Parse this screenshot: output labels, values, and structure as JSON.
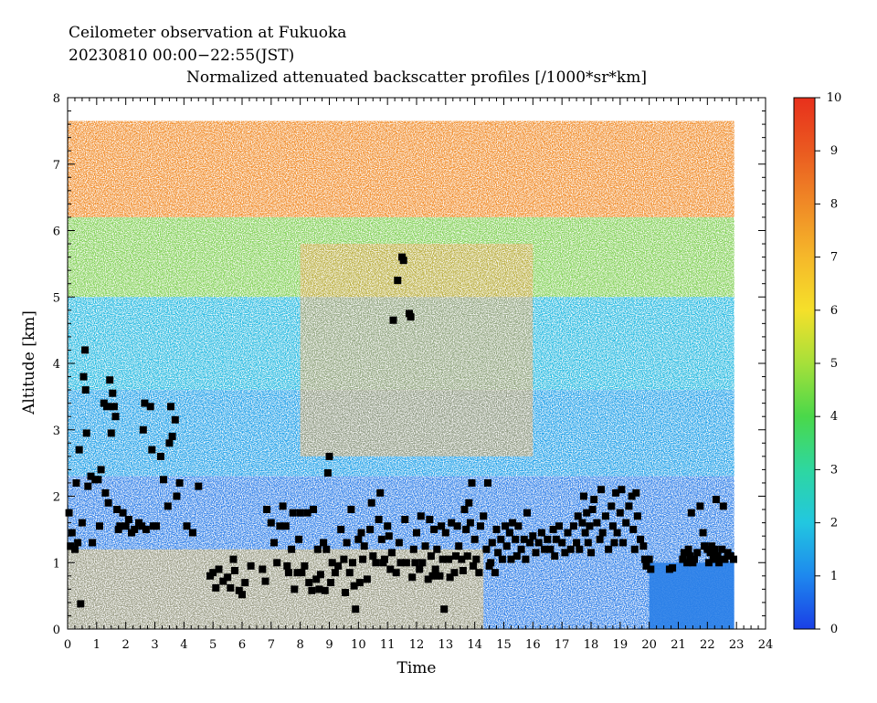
{
  "header": {
    "line1": "Ceilometer observation at Fukuoka",
    "line2": "20230810  00:00−22:55(JST)",
    "title": "Normalized attenuated backscatter profiles [/1000*sr*km]"
  },
  "chart_data": {
    "type": "heatmap",
    "title": "Normalized attenuated backscatter profiles [/1000*sr*km]",
    "xlabel": "Time",
    "ylabel": "Altitude [km]",
    "xlim": [
      0,
      24
    ],
    "ylim": [
      0,
      8
    ],
    "x_ticks": [
      "0",
      "1",
      "2",
      "3",
      "4",
      "5",
      "6",
      "7",
      "8",
      "9",
      "10",
      "11",
      "12",
      "13",
      "14",
      "15",
      "16",
      "17",
      "18",
      "19",
      "20",
      "21",
      "22",
      "23",
      "24"
    ],
    "y_ticks": [
      "0",
      "1",
      "2",
      "3",
      "4",
      "5",
      "6",
      "7",
      "8"
    ],
    "data_extent": {
      "time": [
        0,
        22.92
      ],
      "altitude_max": 7.65
    },
    "colorbar": {
      "range": [
        0,
        10
      ],
      "ticks": [
        "0",
        "1",
        "2",
        "3",
        "4",
        "5",
        "6",
        "7",
        "8",
        "9",
        "10"
      ],
      "colors": [
        "#1a3fe6",
        "#1e88ee",
        "#22c7e0",
        "#2ed7a0",
        "#4ad84a",
        "#a6e03a",
        "#f5e02a",
        "#f5b82a",
        "#f08a26",
        "#ea5a20",
        "#e8301c"
      ]
    },
    "cloud_base_markers": {
      "marker": "black square",
      "points": [
        [
          0.05,
          1.75
        ],
        [
          0.1,
          1.25
        ],
        [
          0.15,
          1.45
        ],
        [
          0.25,
          1.2
        ],
        [
          0.3,
          2.2
        ],
        [
          0.35,
          1.3
        ],
        [
          0.4,
          2.7
        ],
        [
          0.45,
          0.38
        ],
        [
          0.5,
          1.6
        ],
        [
          0.55,
          3.8
        ],
        [
          0.6,
          4.2
        ],
        [
          0.62,
          3.6
        ],
        [
          0.65,
          2.95
        ],
        [
          0.7,
          2.15
        ],
        [
          0.8,
          2.3
        ],
        [
          0.85,
          1.3
        ],
        [
          0.95,
          2.25
        ],
        [
          1.05,
          2.25
        ],
        [
          1.1,
          1.55
        ],
        [
          1.15,
          2.4
        ],
        [
          1.25,
          3.4
        ],
        [
          1.3,
          2.05
        ],
        [
          1.35,
          3.35
        ],
        [
          1.4,
          1.9
        ],
        [
          1.45,
          3.75
        ],
        [
          1.5,
          2.95
        ],
        [
          1.55,
          3.55
        ],
        [
          1.6,
          3.35
        ],
        [
          1.65,
          3.2
        ],
        [
          1.7,
          1.8
        ],
        [
          1.75,
          1.5
        ],
        [
          1.8,
          1.55
        ],
        [
          1.9,
          1.75
        ],
        [
          2.0,
          1.55
        ],
        [
          2.1,
          1.65
        ],
        [
          2.2,
          1.45
        ],
        [
          2.3,
          1.5
        ],
        [
          2.45,
          1.6
        ],
        [
          2.55,
          1.55
        ],
        [
          2.6,
          3.0
        ],
        [
          2.65,
          3.4
        ],
        [
          2.7,
          1.5
        ],
        [
          2.85,
          3.35
        ],
        [
          2.9,
          2.7
        ],
        [
          2.95,
          1.55
        ],
        [
          3.05,
          1.55
        ],
        [
          3.2,
          2.6
        ],
        [
          3.3,
          2.25
        ],
        [
          3.45,
          1.85
        ],
        [
          3.5,
          2.8
        ],
        [
          3.55,
          3.35
        ],
        [
          3.6,
          2.9
        ],
        [
          3.7,
          3.15
        ],
        [
          3.75,
          2.0
        ],
        [
          3.85,
          2.2
        ],
        [
          4.1,
          1.55
        ],
        [
          4.3,
          1.45
        ],
        [
          4.5,
          2.15
        ],
        [
          4.9,
          0.8
        ],
        [
          5.0,
          0.85
        ],
        [
          5.1,
          0.62
        ],
        [
          5.2,
          0.9
        ],
        [
          5.35,
          0.72
        ],
        [
          5.5,
          0.78
        ],
        [
          5.6,
          0.62
        ],
        [
          5.7,
          1.05
        ],
        [
          5.75,
          0.88
        ],
        [
          5.9,
          0.58
        ],
        [
          6.0,
          0.52
        ],
        [
          6.1,
          0.7
        ],
        [
          6.3,
          0.95
        ],
        [
          6.7,
          0.9
        ],
        [
          6.8,
          0.72
        ],
        [
          6.85,
          1.8
        ],
        [
          7.0,
          1.6
        ],
        [
          7.1,
          1.3
        ],
        [
          7.2,
          1.0
        ],
        [
          7.3,
          1.55
        ],
        [
          7.4,
          1.85
        ],
        [
          7.5,
          1.55
        ],
        [
          7.55,
          0.95
        ],
        [
          7.6,
          0.85
        ],
        [
          7.7,
          1.2
        ],
        [
          7.75,
          1.75
        ],
        [
          7.8,
          0.6
        ],
        [
          7.9,
          0.85
        ],
        [
          7.95,
          1.35
        ],
        [
          8.0,
          1.75
        ],
        [
          8.05,
          0.85
        ],
        [
          8.15,
          0.95
        ],
        [
          8.25,
          1.75
        ],
        [
          8.3,
          0.7
        ],
        [
          8.4,
          0.58
        ],
        [
          8.45,
          1.8
        ],
        [
          8.55,
          0.75
        ],
        [
          8.6,
          1.2
        ],
        [
          8.65,
          0.6
        ],
        [
          8.7,
          0.82
        ],
        [
          8.8,
          1.3
        ],
        [
          8.85,
          0.58
        ],
        [
          8.9,
          1.2
        ],
        [
          8.95,
          2.35
        ],
        [
          9.0,
          2.6
        ],
        [
          9.05,
          0.7
        ],
        [
          9.1,
          1.0
        ],
        [
          9.2,
          0.85
        ],
        [
          9.3,
          0.95
        ],
        [
          9.4,
          1.5
        ],
        [
          9.5,
          1.05
        ],
        [
          9.55,
          0.55
        ],
        [
          9.6,
          1.3
        ],
        [
          9.7,
          0.85
        ],
        [
          9.75,
          1.8
        ],
        [
          9.8,
          1.0
        ],
        [
          9.85,
          0.65
        ],
        [
          9.9,
          0.3
        ],
        [
          10.0,
          1.35
        ],
        [
          10.05,
          0.7
        ],
        [
          10.1,
          1.45
        ],
        [
          10.15,
          1.05
        ],
        [
          10.2,
          1.25
        ],
        [
          10.3,
          0.75
        ],
        [
          10.4,
          1.5
        ],
        [
          10.45,
          1.9
        ],
        [
          10.5,
          1.1
        ],
        [
          10.6,
          1.0
        ],
        [
          10.7,
          1.65
        ],
        [
          10.75,
          2.05
        ],
        [
          10.8,
          1.35
        ],
        [
          10.85,
          1.0
        ],
        [
          10.9,
          1.05
        ],
        [
          11.0,
          1.55
        ],
        [
          11.05,
          1.4
        ],
        [
          11.1,
          0.9
        ],
        [
          11.15,
          1.15
        ],
        [
          11.2,
          4.65
        ],
        [
          11.3,
          0.85
        ],
        [
          11.35,
          5.25
        ],
        [
          11.4,
          1.3
        ],
        [
          11.45,
          1.0
        ],
        [
          11.5,
          5.6
        ],
        [
          11.55,
          5.55
        ],
        [
          11.6,
          1.65
        ],
        [
          11.65,
          1.0
        ],
        [
          11.75,
          4.75
        ],
        [
          11.8,
          4.7
        ],
        [
          11.85,
          0.78
        ],
        [
          11.9,
          1.2
        ],
        [
          11.95,
          1.0
        ],
        [
          12.0,
          1.45
        ],
        [
          12.1,
          0.9
        ],
        [
          12.15,
          1.7
        ],
        [
          12.2,
          1.0
        ],
        [
          12.3,
          1.25
        ],
        [
          12.4,
          0.75
        ],
        [
          12.45,
          1.65
        ],
        [
          12.5,
          1.1
        ],
        [
          12.55,
          0.8
        ],
        [
          12.6,
          1.5
        ],
        [
          12.65,
          0.9
        ],
        [
          12.7,
          1.2
        ],
        [
          12.8,
          0.8
        ],
        [
          12.85,
          1.55
        ],
        [
          12.9,
          1.05
        ],
        [
          12.95,
          0.3
        ],
        [
          13.0,
          1.45
        ],
        [
          13.1,
          1.05
        ],
        [
          13.15,
          0.78
        ],
        [
          13.2,
          1.6
        ],
        [
          13.3,
          0.85
        ],
        [
          13.35,
          1.1
        ],
        [
          13.4,
          1.55
        ],
        [
          13.45,
          1.25
        ],
        [
          13.55,
          1.05
        ],
        [
          13.6,
          0.88
        ],
        [
          13.65,
          1.8
        ],
        [
          13.7,
          1.5
        ],
        [
          13.75,
          1.1
        ],
        [
          13.8,
          1.9
        ],
        [
          13.85,
          1.6
        ],
        [
          13.9,
          2.2
        ],
        [
          13.95,
          0.95
        ],
        [
          14.0,
          1.35
        ],
        [
          14.05,
          1.05
        ],
        [
          14.15,
          0.85
        ],
        [
          14.2,
          1.55
        ],
        [
          14.3,
          1.7
        ],
        [
          14.4,
          1.2
        ],
        [
          14.45,
          2.2
        ],
        [
          14.5,
          0.95
        ],
        [
          14.55,
          1.0
        ],
        [
          14.6,
          1.3
        ],
        [
          14.7,
          0.85
        ],
        [
          14.75,
          1.5
        ],
        [
          14.8,
          1.15
        ],
        [
          14.9,
          1.35
        ],
        [
          14.95,
          1.05
        ],
        [
          15.05,
          1.55
        ],
        [
          15.1,
          1.25
        ],
        [
          15.2,
          1.45
        ],
        [
          15.25,
          1.05
        ],
        [
          15.3,
          1.6
        ],
        [
          15.4,
          1.35
        ],
        [
          15.45,
          1.1
        ],
        [
          15.5,
          1.55
        ],
        [
          15.6,
          1.2
        ],
        [
          15.7,
          1.35
        ],
        [
          15.75,
          1.05
        ],
        [
          15.8,
          1.75
        ],
        [
          15.9,
          1.3
        ],
        [
          16.0,
          1.4
        ],
        [
          16.1,
          1.15
        ],
        [
          16.2,
          1.3
        ],
        [
          16.3,
          1.45
        ],
        [
          16.4,
          1.2
        ],
        [
          16.5,
          1.35
        ],
        [
          16.6,
          1.2
        ],
        [
          16.7,
          1.5
        ],
        [
          16.75,
          1.1
        ],
        [
          16.8,
          1.35
        ],
        [
          16.9,
          1.55
        ],
        [
          17.0,
          1.3
        ],
        [
          17.1,
          1.15
        ],
        [
          17.2,
          1.45
        ],
        [
          17.3,
          1.2
        ],
        [
          17.4,
          1.55
        ],
        [
          17.5,
          1.3
        ],
        [
          17.55,
          1.7
        ],
        [
          17.6,
          1.2
        ],
        [
          17.7,
          1.6
        ],
        [
          17.75,
          2.0
        ],
        [
          17.8,
          1.45
        ],
        [
          17.85,
          1.75
        ],
        [
          17.9,
          1.3
        ],
        [
          17.95,
          1.55
        ],
        [
          18.0,
          1.15
        ],
        [
          18.05,
          1.8
        ],
        [
          18.1,
          1.95
        ],
        [
          18.2,
          1.6
        ],
        [
          18.3,
          1.35
        ],
        [
          18.35,
          2.1
        ],
        [
          18.4,
          1.45
        ],
        [
          18.5,
          1.7
        ],
        [
          18.6,
          1.2
        ],
        [
          18.7,
          1.85
        ],
        [
          18.75,
          1.55
        ],
        [
          18.8,
          1.3
        ],
        [
          18.85,
          2.05
        ],
        [
          18.9,
          1.45
        ],
        [
          19.0,
          1.75
        ],
        [
          19.05,
          2.1
        ],
        [
          19.1,
          1.3
        ],
        [
          19.2,
          1.6
        ],
        [
          19.3,
          1.85
        ],
        [
          19.4,
          2.0
        ],
        [
          19.45,
          1.5
        ],
        [
          19.5,
          1.2
        ],
        [
          19.55,
          2.05
        ],
        [
          19.6,
          1.7
        ],
        [
          19.7,
          1.35
        ],
        [
          19.8,
          1.25
        ],
        [
          19.85,
          1.05
        ],
        [
          19.9,
          0.95
        ],
        [
          20.0,
          1.05
        ],
        [
          20.05,
          0.9
        ],
        [
          20.7,
          0.9
        ],
        [
          20.8,
          0.92
        ],
        [
          21.15,
          1.05
        ],
        [
          21.2,
          1.15
        ],
        [
          21.3,
          1.0
        ],
        [
          21.35,
          1.2
        ],
        [
          21.4,
          1.1
        ],
        [
          21.45,
          1.75
        ],
        [
          21.5,
          1.0
        ],
        [
          21.55,
          1.05
        ],
        [
          21.65,
          1.15
        ],
        [
          21.75,
          1.85
        ],
        [
          21.85,
          1.45
        ],
        [
          21.9,
          1.25
        ],
        [
          22.0,
          1.2
        ],
        [
          22.05,
          1.0
        ],
        [
          22.1,
          1.15
        ],
        [
          22.15,
          1.25
        ],
        [
          22.2,
          1.05
        ],
        [
          22.25,
          1.2
        ],
        [
          22.3,
          1.95
        ],
        [
          22.35,
          1.1
        ],
        [
          22.4,
          1.0
        ],
        [
          22.5,
          1.2
        ],
        [
          22.55,
          1.85
        ],
        [
          22.6,
          1.05
        ],
        [
          22.7,
          1.15
        ],
        [
          22.8,
          1.1
        ],
        [
          22.9,
          1.05
        ]
      ]
    }
  }
}
